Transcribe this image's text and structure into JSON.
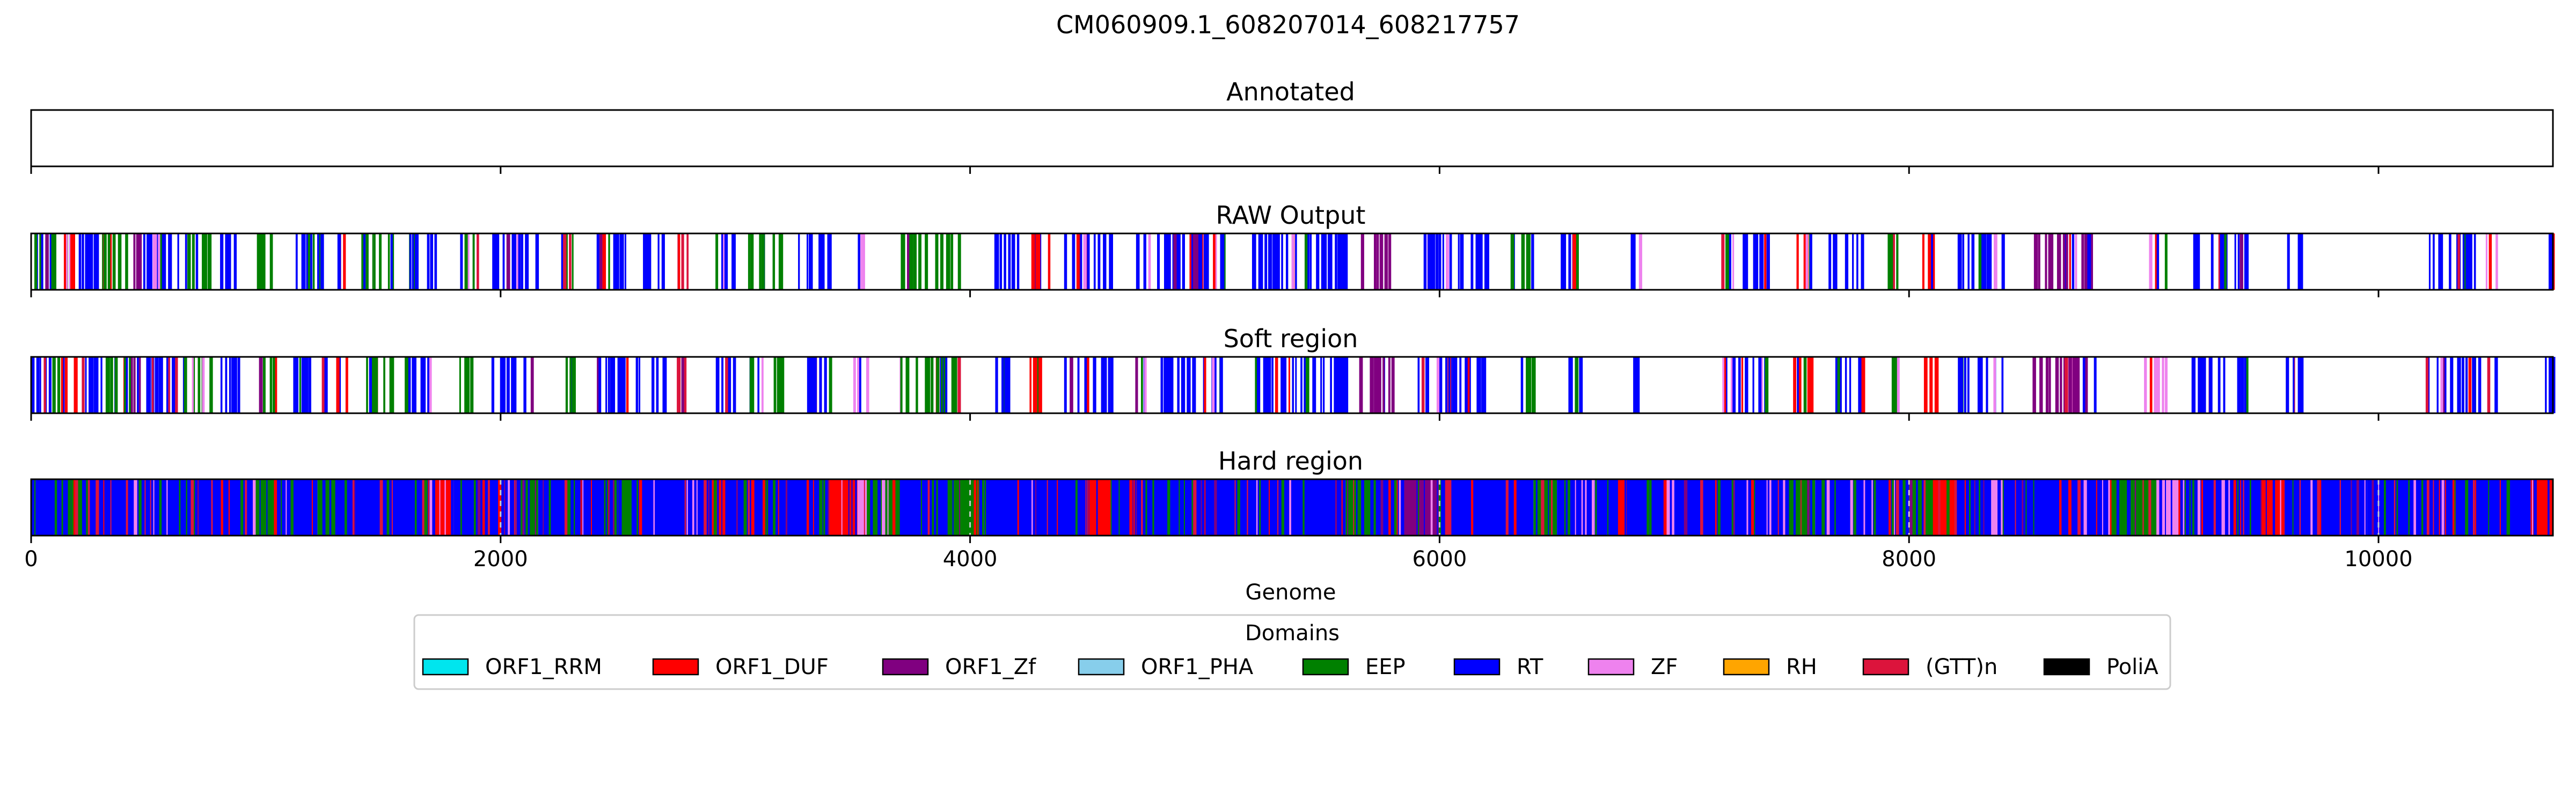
{
  "chart_data": {
    "type": "genome-track",
    "suptitle": "CM060909.1_608207014_608217757",
    "xlabel": "Genome",
    "xlim": [
      0,
      10743
    ],
    "xticks": [
      0,
      2000,
      4000,
      6000,
      8000,
      10000
    ],
    "xtick_labels": [
      "0",
      "2000",
      "4000",
      "6000",
      "8000",
      "10000"
    ],
    "legend": {
      "title": "Domains",
      "placement": "bottom-center",
      "entries": [
        {
          "name": "ORF1_RRM",
          "color": "#00e5ee"
        },
        {
          "name": "ORF1_DUF",
          "color": "#ff0000"
        },
        {
          "name": "ORF1_Zf",
          "color": "#800080"
        },
        {
          "name": "ORF1_PHA",
          "color": "#87ceeb"
        },
        {
          "name": "EEP",
          "color": "#008000"
        },
        {
          "name": "RT",
          "color": "#0000ff"
        },
        {
          "name": "ZF",
          "color": "#ee82ee"
        },
        {
          "name": "RH",
          "color": "#ffa500"
        },
        {
          "name": "(GTT)n",
          "color": "#dc143c"
        },
        {
          "name": "PoliA",
          "color": "#000000"
        }
      ]
    },
    "panels": [
      {
        "title": "Annotated",
        "style": "empty",
        "segments": []
      },
      {
        "title": "RAW Output",
        "style": "sparse",
        "segments": [
          {
            "start": 0,
            "end": 80,
            "domain": "RT"
          },
          {
            "start": 80,
            "end": 120,
            "domain": "EEP"
          },
          {
            "start": 120,
            "end": 200,
            "domain": "ORF1_DUF"
          },
          {
            "start": 200,
            "end": 300,
            "domain": "RT"
          },
          {
            "start": 300,
            "end": 420,
            "domain": "EEP"
          },
          {
            "start": 420,
            "end": 470,
            "domain": "ORF1_Zf"
          },
          {
            "start": 470,
            "end": 650,
            "domain": "RT"
          },
          {
            "start": 650,
            "end": 760,
            "domain": "EEP"
          },
          {
            "start": 800,
            "end": 880,
            "domain": "RT"
          },
          {
            "start": 950,
            "end": 1050,
            "domain": "EEP"
          },
          {
            "start": 1100,
            "end": 1250,
            "domain": "RT"
          },
          {
            "start": 1290,
            "end": 1340,
            "domain": "ORF1_DUF"
          },
          {
            "start": 1400,
            "end": 1550,
            "domain": "EEP"
          },
          {
            "start": 1580,
            "end": 1720,
            "domain": "RT"
          },
          {
            "start": 1820,
            "end": 1900,
            "domain": "EEP"
          },
          {
            "start": 1950,
            "end": 2150,
            "domain": "RT"
          },
          {
            "start": 2250,
            "end": 2320,
            "domain": "EEP"
          },
          {
            "start": 2400,
            "end": 2700,
            "domain": "RT"
          },
          {
            "start": 2750,
            "end": 2800,
            "domain": "(GTT)n"
          },
          {
            "start": 2900,
            "end": 3000,
            "domain": "RT"
          },
          {
            "start": 3050,
            "end": 3200,
            "domain": "EEP"
          },
          {
            "start": 3260,
            "end": 3400,
            "domain": "RT"
          },
          {
            "start": 3500,
            "end": 3560,
            "domain": "ZF"
          },
          {
            "start": 3700,
            "end": 3950,
            "domain": "EEP"
          },
          {
            "start": 4100,
            "end": 4200,
            "domain": "RT"
          },
          {
            "start": 4250,
            "end": 4350,
            "domain": "ORF1_DUF"
          },
          {
            "start": 4400,
            "end": 4600,
            "domain": "RT"
          },
          {
            "start": 4700,
            "end": 5100,
            "domain": "RT"
          },
          {
            "start": 5200,
            "end": 5600,
            "domain": "RT"
          },
          {
            "start": 5650,
            "end": 5800,
            "domain": "ORF1_Zf"
          },
          {
            "start": 5900,
            "end": 6200,
            "domain": "RT"
          },
          {
            "start": 6300,
            "end": 6400,
            "domain": "EEP"
          },
          {
            "start": 6500,
            "end": 6600,
            "domain": "RT"
          },
          {
            "start": 6800,
            "end": 6850,
            "domain": "RT"
          },
          {
            "start": 7200,
            "end": 7400,
            "domain": "RT"
          },
          {
            "start": 7500,
            "end": 7600,
            "domain": "ORF1_DUF"
          },
          {
            "start": 7650,
            "end": 7800,
            "domain": "RT"
          },
          {
            "start": 7900,
            "end": 7950,
            "domain": "EEP"
          },
          {
            "start": 8050,
            "end": 8120,
            "domain": "ORF1_DUF"
          },
          {
            "start": 8200,
            "end": 8400,
            "domain": "RT"
          },
          {
            "start": 8500,
            "end": 8800,
            "domain": "ORF1_Zf"
          },
          {
            "start": 9000,
            "end": 9100,
            "domain": "ZF"
          },
          {
            "start": 9200,
            "end": 9450,
            "domain": "RT"
          },
          {
            "start": 9600,
            "end": 9700,
            "domain": "RT"
          },
          {
            "start": 10200,
            "end": 10500,
            "domain": "RT"
          },
          {
            "start": 10700,
            "end": 10743,
            "domain": "RT"
          }
        ]
      },
      {
        "title": "Soft region",
        "style": "sparse",
        "segments": [
          {
            "start": 0,
            "end": 80,
            "domain": "RT"
          },
          {
            "start": 80,
            "end": 120,
            "domain": "EEP"
          },
          {
            "start": 120,
            "end": 200,
            "domain": "ORF1_DUF"
          },
          {
            "start": 200,
            "end": 300,
            "domain": "RT"
          },
          {
            "start": 300,
            "end": 420,
            "domain": "EEP"
          },
          {
            "start": 420,
            "end": 470,
            "domain": "ORF1_Zf"
          },
          {
            "start": 470,
            "end": 650,
            "domain": "RT"
          },
          {
            "start": 650,
            "end": 760,
            "domain": "EEP"
          },
          {
            "start": 800,
            "end": 880,
            "domain": "RT"
          },
          {
            "start": 950,
            "end": 1050,
            "domain": "EEP"
          },
          {
            "start": 1100,
            "end": 1250,
            "domain": "RT"
          },
          {
            "start": 1290,
            "end": 1340,
            "domain": "ORF1_DUF"
          },
          {
            "start": 1400,
            "end": 1550,
            "domain": "EEP"
          },
          {
            "start": 1580,
            "end": 1720,
            "domain": "RT"
          },
          {
            "start": 1820,
            "end": 1900,
            "domain": "EEP"
          },
          {
            "start": 1950,
            "end": 2150,
            "domain": "RT"
          },
          {
            "start": 2250,
            "end": 2320,
            "domain": "EEP"
          },
          {
            "start": 2400,
            "end": 2700,
            "domain": "RT"
          },
          {
            "start": 2750,
            "end": 2800,
            "domain": "(GTT)n"
          },
          {
            "start": 2900,
            "end": 3000,
            "domain": "RT"
          },
          {
            "start": 3050,
            "end": 3200,
            "domain": "EEP"
          },
          {
            "start": 3260,
            "end": 3400,
            "domain": "RT"
          },
          {
            "start": 3500,
            "end": 3560,
            "domain": "ZF"
          },
          {
            "start": 3700,
            "end": 3950,
            "domain": "EEP"
          },
          {
            "start": 4100,
            "end": 4200,
            "domain": "RT"
          },
          {
            "start": 4250,
            "end": 4350,
            "domain": "ORF1_DUF"
          },
          {
            "start": 4400,
            "end": 4600,
            "domain": "RT"
          },
          {
            "start": 4700,
            "end": 5100,
            "domain": "RT"
          },
          {
            "start": 5200,
            "end": 5600,
            "domain": "RT"
          },
          {
            "start": 5650,
            "end": 5800,
            "domain": "ORF1_Zf"
          },
          {
            "start": 5900,
            "end": 6200,
            "domain": "RT"
          },
          {
            "start": 6300,
            "end": 6400,
            "domain": "EEP"
          },
          {
            "start": 6500,
            "end": 6600,
            "domain": "RT"
          },
          {
            "start": 6800,
            "end": 6850,
            "domain": "RT"
          },
          {
            "start": 7200,
            "end": 7400,
            "domain": "RT"
          },
          {
            "start": 7500,
            "end": 7600,
            "domain": "ORF1_DUF"
          },
          {
            "start": 7650,
            "end": 7800,
            "domain": "RT"
          },
          {
            "start": 7900,
            "end": 7950,
            "domain": "EEP"
          },
          {
            "start": 8050,
            "end": 8120,
            "domain": "ORF1_DUF"
          },
          {
            "start": 8200,
            "end": 8400,
            "domain": "RT"
          },
          {
            "start": 8500,
            "end": 8800,
            "domain": "ORF1_Zf"
          },
          {
            "start": 9000,
            "end": 9100,
            "domain": "ZF"
          },
          {
            "start": 9200,
            "end": 9450,
            "domain": "RT"
          },
          {
            "start": 9600,
            "end": 9700,
            "domain": "RT"
          },
          {
            "start": 10200,
            "end": 10500,
            "domain": "RT"
          },
          {
            "start": 10700,
            "end": 10743,
            "domain": "RT"
          }
        ]
      },
      {
        "title": "Hard region",
        "style": "dense",
        "segments": [
          {
            "start": 0,
            "end": 950,
            "domain": "RT"
          },
          {
            "start": 950,
            "end": 1040,
            "domain": "EEP"
          },
          {
            "start": 1040,
            "end": 1220,
            "domain": "RT"
          },
          {
            "start": 1220,
            "end": 1290,
            "domain": "EEP"
          },
          {
            "start": 1290,
            "end": 1720,
            "domain": "RT"
          },
          {
            "start": 1720,
            "end": 1800,
            "domain": "ORF1_DUF"
          },
          {
            "start": 1800,
            "end": 2080,
            "domain": "RT"
          },
          {
            "start": 2080,
            "end": 2160,
            "domain": "EEP"
          },
          {
            "start": 2160,
            "end": 2500,
            "domain": "RT"
          },
          {
            "start": 2500,
            "end": 2560,
            "domain": "EEP"
          },
          {
            "start": 2560,
            "end": 2900,
            "domain": "RT"
          },
          {
            "start": 2900,
            "end": 2960,
            "domain": "ORF1_DUF"
          },
          {
            "start": 2960,
            "end": 3400,
            "domain": "RT"
          },
          {
            "start": 3400,
            "end": 3520,
            "domain": "ORF1_DUF"
          },
          {
            "start": 3520,
            "end": 3560,
            "domain": "ZF"
          },
          {
            "start": 3560,
            "end": 3700,
            "domain": "EEP"
          },
          {
            "start": 3700,
            "end": 3900,
            "domain": "RT"
          },
          {
            "start": 3900,
            "end": 4060,
            "domain": "EEP"
          },
          {
            "start": 4060,
            "end": 4500,
            "domain": "RT"
          },
          {
            "start": 4500,
            "end": 4600,
            "domain": "ORF1_DUF"
          },
          {
            "start": 4600,
            "end": 5000,
            "domain": "RT"
          },
          {
            "start": 5000,
            "end": 5600,
            "domain": "RT"
          },
          {
            "start": 5600,
            "end": 5700,
            "domain": "EEP"
          },
          {
            "start": 5700,
            "end": 5850,
            "domain": "RT"
          },
          {
            "start": 5850,
            "end": 6000,
            "domain": "ORF1_Zf"
          },
          {
            "start": 6000,
            "end": 6400,
            "domain": "RT"
          },
          {
            "start": 6400,
            "end": 6500,
            "domain": "EEP"
          },
          {
            "start": 6500,
            "end": 6750,
            "domain": "RT"
          },
          {
            "start": 6750,
            "end": 6800,
            "domain": "ORF1_DUF"
          },
          {
            "start": 6800,
            "end": 6950,
            "domain": "RT"
          },
          {
            "start": 6950,
            "end": 7000,
            "domain": "ZF"
          },
          {
            "start": 7000,
            "end": 7500,
            "domain": "RT"
          },
          {
            "start": 7500,
            "end": 7600,
            "domain": "EEP"
          },
          {
            "start": 7600,
            "end": 8000,
            "domain": "RT"
          },
          {
            "start": 8000,
            "end": 8100,
            "domain": "EEP"
          },
          {
            "start": 8100,
            "end": 8200,
            "domain": "ORF1_DUF"
          },
          {
            "start": 8200,
            "end": 8350,
            "domain": "RT"
          },
          {
            "start": 8350,
            "end": 8400,
            "domain": "ZF"
          },
          {
            "start": 8400,
            "end": 8850,
            "domain": "RT"
          },
          {
            "start": 8850,
            "end": 9050,
            "domain": "EEP"
          },
          {
            "start": 9050,
            "end": 9150,
            "domain": "ZF"
          },
          {
            "start": 9150,
            "end": 9500,
            "domain": "RT"
          },
          {
            "start": 9500,
            "end": 9600,
            "domain": "ORF1_DUF"
          },
          {
            "start": 9600,
            "end": 9950,
            "domain": "RT"
          },
          {
            "start": 9950,
            "end": 10650,
            "domain": "RT"
          },
          {
            "start": 10650,
            "end": 10743,
            "domain": "ORF1_DUF"
          }
        ]
      }
    ]
  }
}
